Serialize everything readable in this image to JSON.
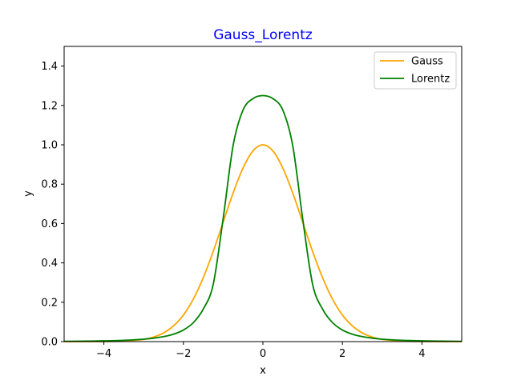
{
  "chart_data": {
    "type": "line",
    "title": "Gauss_Lorentz",
    "title_color": "#0000ff",
    "xlabel": "x",
    "ylabel": "y",
    "xlim": [
      -5,
      5
    ],
    "ylim": [
      0,
      1.5
    ],
    "xticks": [
      -4,
      -2,
      0,
      2,
      4
    ],
    "xtick_labels": [
      "−4",
      "−2",
      "0",
      "2",
      "4"
    ],
    "yticks": [
      0.0,
      0.2,
      0.4,
      0.6,
      0.8,
      1.0,
      1.2,
      1.4
    ],
    "ytick_labels": [
      "0.0",
      "0.2",
      "0.4",
      "0.6",
      "0.8",
      "1.0",
      "1.2",
      "1.4"
    ],
    "grid": false,
    "legend_position": "top-right",
    "series": [
      {
        "name": "Gauss",
        "color": "#ffa500",
        "x": [
          -5,
          -4.5,
          -4,
          -3.5,
          -3,
          -2.75,
          -2.5,
          -2.25,
          -2,
          -1.75,
          -1.5,
          -1.25,
          -1,
          -0.75,
          -0.5,
          -0.25,
          0,
          0.25,
          0.5,
          0.75,
          1,
          1.25,
          1.5,
          1.75,
          2,
          2.25,
          2.5,
          2.75,
          3,
          3.5,
          4,
          4.5,
          5
        ],
        "y": [
          0.0001,
          0.0002,
          0.0004,
          0.0028,
          0.011,
          0.023,
          0.044,
          0.08,
          0.135,
          0.216,
          0.325,
          0.458,
          0.607,
          0.755,
          0.882,
          0.969,
          1.0,
          0.969,
          0.882,
          0.755,
          0.607,
          0.458,
          0.325,
          0.216,
          0.135,
          0.08,
          0.044,
          0.023,
          0.011,
          0.0028,
          0.0004,
          0.0002,
          0.0001
        ]
      },
      {
        "name": "Lorentz",
        "color": "#008000",
        "x": [
          -5,
          -4.5,
          -4,
          -3.5,
          -3,
          -2.75,
          -2.5,
          -2.25,
          -2,
          -1.75,
          -1.5,
          -1.25,
          -1,
          -0.75,
          -0.5,
          -0.25,
          0,
          0.25,
          0.5,
          0.75,
          1,
          1.25,
          1.5,
          1.75,
          2,
          2.25,
          2.5,
          2.75,
          3,
          3.5,
          4,
          4.5,
          5
        ],
        "y": [
          0.0016,
          0.0025,
          0.0039,
          0.0067,
          0.0123,
          0.0175,
          0.0253,
          0.0377,
          0.0588,
          0.0963,
          0.1653,
          0.291,
          0.625,
          0.9958,
          1.1765,
          1.2348,
          1.25,
          1.2348,
          1.1765,
          0.9958,
          0.625,
          0.291,
          0.1653,
          0.0963,
          0.0588,
          0.0377,
          0.0253,
          0.0175,
          0.0123,
          0.0067,
          0.0039,
          0.0025,
          0.0016
        ]
      }
    ]
  }
}
